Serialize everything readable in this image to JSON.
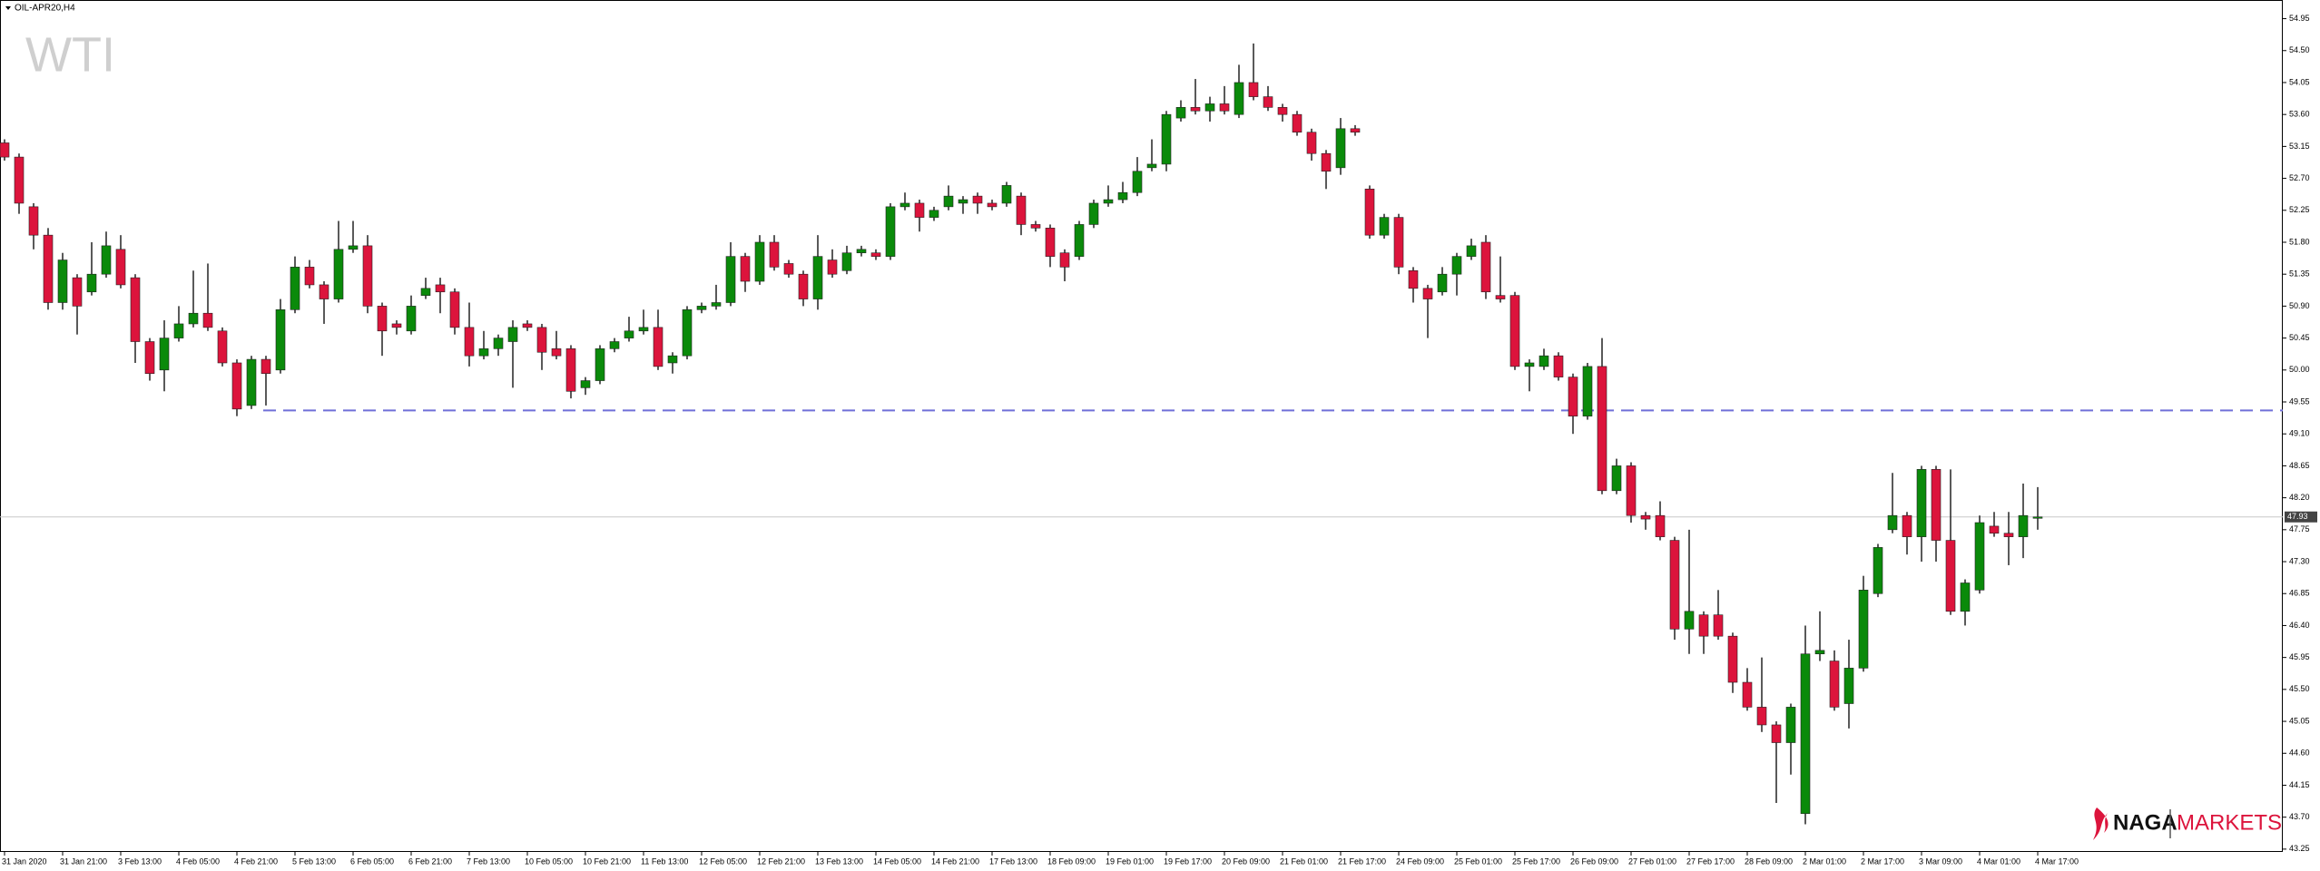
{
  "chart_data": {
    "type": "candlestick",
    "symbol": "OIL-APR20,H4",
    "watermark": "WTI",
    "brand": [
      "NAGA",
      "MARKETS"
    ],
    "up_color": "#0a8a0a",
    "down_color": "#dc143c",
    "categories": [
      "31 Jan 2020",
      null,
      null,
      null,
      "31 Jan 21:00",
      null,
      null,
      null,
      "3 Feb 13:00",
      null,
      null,
      null,
      "4 Feb 05:00",
      null,
      null,
      null,
      "4 Feb 21:00",
      null,
      null,
      null,
      "5 Feb 13:00",
      null,
      null,
      null,
      "6 Feb 05:00",
      null,
      null,
      null,
      "6 Feb 21:00",
      null,
      null,
      null,
      "7 Feb 13:00",
      null,
      null,
      null,
      "10 Feb 05:00",
      null,
      null,
      null,
      "10 Feb 21:00",
      null,
      null,
      null,
      "11 Feb 13:00",
      null,
      null,
      null,
      "12 Feb 05:00",
      null,
      null,
      null,
      "12 Feb 21:00",
      null,
      null,
      null,
      "13 Feb 13:00",
      null,
      null,
      null,
      "14 Feb 05:00",
      null,
      null,
      null,
      "14 Feb 21:00",
      null,
      null,
      null,
      "17 Feb 13:00",
      null,
      null,
      null,
      "18 Feb 09:00",
      null,
      null,
      null,
      "19 Feb 01:00",
      null,
      null,
      null,
      "19 Feb 17:00",
      null,
      null,
      null,
      "20 Feb 09:00",
      null,
      null,
      null,
      "21 Feb 01:00",
      null,
      null,
      null,
      "21 Feb 17:00",
      null,
      null,
      null,
      "24 Feb 09:00",
      null,
      null,
      null,
      "25 Feb 01:00",
      null,
      null,
      null,
      "25 Feb 17:00",
      null,
      null,
      null,
      "26 Feb 09:00",
      null,
      null,
      null,
      "27 Feb 01:00",
      null,
      null,
      null,
      "27 Feb 17:00",
      null,
      null,
      null,
      "28 Feb 09:00",
      null,
      null,
      null,
      "2 Mar 01:00",
      null,
      null,
      null,
      "2 Mar 17:00",
      null,
      null,
      null,
      "3 Mar 09:00",
      null,
      null,
      null,
      "4 Mar 01:00",
      null,
      null,
      null,
      "4 Mar 17:00"
    ],
    "open": [
      53.2,
      53.0,
      52.3,
      51.9,
      50.95,
      51.3,
      51.1,
      51.35,
      51.7,
      51.3,
      50.4,
      50.0,
      50.45,
      50.65,
      50.8,
      50.55,
      50.1,
      49.5,
      50.15,
      50.0,
      50.85,
      51.45,
      51.2,
      51.0,
      51.7,
      51.75,
      50.9,
      50.65,
      50.55,
      51.05,
      51.2,
      51.1,
      50.6,
      50.2,
      50.3,
      50.4,
      50.65,
      50.6,
      50.3,
      50.3,
      49.75,
      49.85,
      50.3,
      50.45,
      50.55,
      50.6,
      50.1,
      50.2,
      50.85,
      50.9,
      50.95,
      51.6,
      51.25,
      51.8,
      51.5,
      51.35,
      51.0,
      51.55,
      51.4,
      51.65,
      51.65,
      51.6,
      52.3,
      52.35,
      52.15,
      52.3,
      52.35,
      52.45,
      52.35,
      52.35,
      52.45,
      52.05,
      52.0,
      51.65,
      51.6,
      52.05,
      52.35,
      52.4,
      52.5,
      52.85,
      52.9,
      53.55,
      53.7,
      53.65,
      53.75,
      53.6,
      54.05,
      53.85,
      53.7,
      53.6,
      53.35,
      53.05,
      52.85,
      53.4,
      52.55,
      51.9,
      52.15,
      51.4,
      51.15,
      51.1,
      51.35,
      51.6,
      51.8,
      51.05,
      51.05,
      50.05,
      50.05,
      50.2,
      49.9,
      49.35,
      50.05,
      48.3,
      48.65,
      47.95,
      47.95,
      47.6,
      46.35,
      46.55,
      46.55,
      46.25,
      45.6,
      45.25,
      45.0,
      44.75,
      43.75,
      46.0,
      45.9,
      45.3,
      45.8,
      46.85,
      47.75,
      47.95,
      47.65,
      48.6,
      47.6,
      46.6,
      46.9,
      47.8,
      47.7,
      47.65,
      47.92
    ],
    "high": [
      53.25,
      53.05,
      52.35,
      52.0,
      51.65,
      51.35,
      51.8,
      51.95,
      51.9,
      51.35,
      50.45,
      50.7,
      50.9,
      51.4,
      51.5,
      50.6,
      50.15,
      50.2,
      50.2,
      51.0,
      51.6,
      51.55,
      51.25,
      52.1,
      52.1,
      51.9,
      50.95,
      50.7,
      51.05,
      51.3,
      51.3,
      51.15,
      50.95,
      50.55,
      50.5,
      50.7,
      50.7,
      50.65,
      50.55,
      50.35,
      49.9,
      50.35,
      50.45,
      50.75,
      50.85,
      50.85,
      50.25,
      50.9,
      50.95,
      51.2,
      51.8,
      51.65,
      51.9,
      51.9,
      51.55,
      51.4,
      51.9,
      51.7,
      51.75,
      51.75,
      51.7,
      52.35,
      52.5,
      52.4,
      52.3,
      52.6,
      52.45,
      52.5,
      52.4,
      52.65,
      52.5,
      52.1,
      52.05,
      51.7,
      52.1,
      52.4,
      52.6,
      52.65,
      53.0,
      53.25,
      53.65,
      53.8,
      54.1,
      53.85,
      54.0,
      54.3,
      54.6,
      54.0,
      53.75,
      53.65,
      53.4,
      53.1,
      53.55,
      53.45,
      52.6,
      52.2,
      52.2,
      51.45,
      51.2,
      51.45,
      51.65,
      51.85,
      51.9,
      51.6,
      51.1,
      50.15,
      50.3,
      50.25,
      49.95,
      50.1,
      50.45,
      48.75,
      48.7,
      48.0,
      48.15,
      47.65,
      47.75,
      46.6,
      46.9,
      46.3,
      45.8,
      45.95,
      45.05,
      45.3,
      46.4,
      46.6,
      46.05,
      46.2,
      47.1,
      47.55,
      48.55,
      48.0,
      48.65,
      48.65,
      48.6,
      47.05,
      47.95,
      48.0,
      48.0,
      48.4,
      48.35
    ],
    "low": [
      52.95,
      52.2,
      51.7,
      50.85,
      50.85,
      50.5,
      51.05,
      51.3,
      51.15,
      50.1,
      49.85,
      49.7,
      50.4,
      50.6,
      50.55,
      50.05,
      49.35,
      49.45,
      49.5,
      49.95,
      50.8,
      51.15,
      50.65,
      50.95,
      51.65,
      50.8,
      50.2,
      50.5,
      50.5,
      51.0,
      50.8,
      50.5,
      50.05,
      50.15,
      50.2,
      49.75,
      50.55,
      50.0,
      50.15,
      49.6,
      49.65,
      49.8,
      50.25,
      50.4,
      50.5,
      50.0,
      49.95,
      50.15,
      50.8,
      50.85,
      50.9,
      51.1,
      51.2,
      51.4,
      51.3,
      50.9,
      50.85,
      51.3,
      51.35,
      51.6,
      51.55,
      51.55,
      52.25,
      51.95,
      52.1,
      52.25,
      52.2,
      52.2,
      52.25,
      52.3,
      51.9,
      51.95,
      51.45,
      51.25,
      51.55,
      52.0,
      52.3,
      52.35,
      52.45,
      52.8,
      52.8,
      53.5,
      53.6,
      53.5,
      53.6,
      53.55,
      53.8,
      53.65,
      53.5,
      53.3,
      52.95,
      52.55,
      52.75,
      53.3,
      51.85,
      51.85,
      51.35,
      50.95,
      50.45,
      51.05,
      51.05,
      51.55,
      51.0,
      50.95,
      50.0,
      49.7,
      50.0,
      49.85,
      49.1,
      49.3,
      48.25,
      48.25,
      47.85,
      47.75,
      47.6,
      46.2,
      46.0,
      46.0,
      46.2,
      45.45,
      45.2,
      44.9,
      43.9,
      44.3,
      43.6,
      45.9,
      45.2,
      44.95,
      45.75,
      46.8,
      47.7,
      47.4,
      47.3,
      47.3,
      46.55,
      46.4,
      46.85,
      47.65,
      47.25,
      47.35,
      47.75
    ],
    "close": [
      53.0,
      52.35,
      51.9,
      50.95,
      51.55,
      50.9,
      51.35,
      51.75,
      51.2,
      50.4,
      49.95,
      50.45,
      50.65,
      50.8,
      50.6,
      50.1,
      49.45,
      50.15,
      49.95,
      50.85,
      51.45,
      51.2,
      51.0,
      51.7,
      51.75,
      50.9,
      50.55,
      50.6,
      50.9,
      51.15,
      51.1,
      50.6,
      50.2,
      50.3,
      50.45,
      50.6,
      50.6,
      50.25,
      50.2,
      49.7,
      49.85,
      50.3,
      50.4,
      50.55,
      50.6,
      50.05,
      50.2,
      50.85,
      50.9,
      50.95,
      51.6,
      51.25,
      51.8,
      51.45,
      51.35,
      51.0,
      51.6,
      51.35,
      51.65,
      51.7,
      51.6,
      52.3,
      52.35,
      52.15,
      52.25,
      52.45,
      52.4,
      52.35,
      52.3,
      52.6,
      52.05,
      52.0,
      51.6,
      51.45,
      52.05,
      52.35,
      52.4,
      52.5,
      52.8,
      52.9,
      53.6,
      53.7,
      53.65,
      53.75,
      53.65,
      54.05,
      53.85,
      53.7,
      53.6,
      53.35,
      53.05,
      52.8,
      53.4,
      53.35,
      51.9,
      52.15,
      51.45,
      51.15,
      51.0,
      51.35,
      51.6,
      51.75,
      51.1,
      51.0,
      50.05,
      50.1,
      50.2,
      49.9,
      49.35,
      50.05,
      48.3,
      48.65,
      47.95,
      47.9,
      47.65,
      46.35,
      46.6,
      46.25,
      46.25,
      45.6,
      45.25,
      45.0,
      44.75,
      45.25,
      46.0,
      46.05,
      45.25,
      45.8,
      46.9,
      47.5,
      47.95,
      47.65,
      48.6,
      47.6,
      46.6,
      47.0,
      47.85,
      47.7,
      47.65,
      47.95,
      47.93
    ],
    "ylim": [
      43.21,
      55.2
    ],
    "yticks": [
      54.95,
      {
        "value": 54.5,
        "label": "54.50"
      },
      54.05,
      {
        "value": 53.6,
        "label": "53.60"
      },
      53.15,
      {
        "value": 52.7,
        "label": "52.70"
      },
      52.25,
      {
        "value": 51.8,
        "label": "51.80"
      },
      51.35,
      {
        "value": 50.9,
        "label": "50.90"
      },
      50.45,
      {
        "value": 50,
        "label": "50.00"
      },
      49.55,
      {
        "value": 49.1,
        "label": "49.10"
      },
      48.65,
      {
        "value": 48.2,
        "label": "48.20"
      },
      47.75,
      {
        "value": 47.3,
        "label": "47.30"
      },
      46.85,
      {
        "value": 46.4,
        "label": "46.40"
      },
      45.95,
      {
        "value": 45.5,
        "label": "45.50"
      },
      45.05,
      {
        "value": 44.6,
        "label": "44.60"
      },
      44.15,
      {
        "value": 43.7,
        "label": "43.70"
      },
      43.25
    ],
    "level_line": 49.43,
    "level_color": "#6f6fd8",
    "last_price": 47.93,
    "last_price_color": "#c8c8c8"
  }
}
